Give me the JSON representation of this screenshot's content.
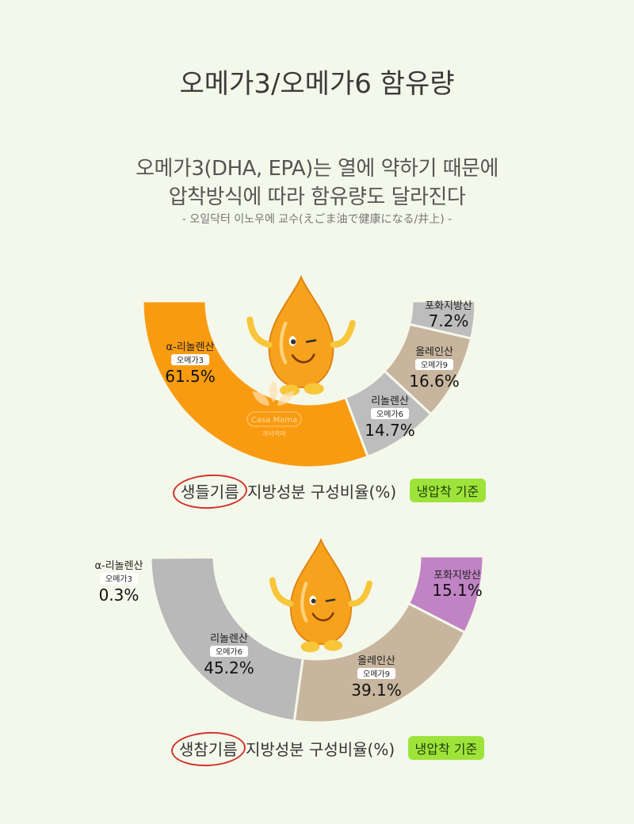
{
  "title": "오메가3/오메가6 함유량",
  "subtitle_line1": "오메가3(DHA, EPA)는 열에 약하기 때문에",
  "subtitle_line2": "압착방식에 따라 함유량도 달라진다",
  "credit": "- 오일닥터 이노우에 교수(えごま油で健康になる/井上) -",
  "watermark": {
    "line1": "Casa Mama",
    "line2": "까사마마"
  },
  "chart_data": [
    {
      "type": "pie",
      "oil": "생들기름",
      "caption_rest": "지방성분 구성비율(%)",
      "badge": "냉압착 기준",
      "segments": [
        {
          "name": "α-리놀렌산",
          "tag": "오메가3",
          "value": 61.5,
          "display": "61.5%",
          "color": "#f99b10"
        },
        {
          "name": "리놀렌산",
          "tag": "오메가6",
          "value": 14.7,
          "display": "14.7%",
          "color": "#bdbdbd"
        },
        {
          "name": "올레인산",
          "tag": "오메가9",
          "value": 16.6,
          "display": "16.6%",
          "color": "#c8b59e"
        },
        {
          "name": "포화지방산",
          "tag": "",
          "value": 7.2,
          "display": "7.2%",
          "color": "#bdbdbd"
        }
      ]
    },
    {
      "type": "pie",
      "oil": "생참기름",
      "caption_rest": "지방성분 구성비율(%)",
      "badge": "냉압착 기준",
      "segments": [
        {
          "name": "α-리놀렌산",
          "tag": "오메가3",
          "value": 0.3,
          "display": "0.3%",
          "color": "#f99b10"
        },
        {
          "name": "리놀렌산",
          "tag": "오메가6",
          "value": 45.2,
          "display": "45.2%",
          "color": "#b9b9b9"
        },
        {
          "name": "올레인산",
          "tag": "오메가9",
          "value": 39.1,
          "display": "39.1%",
          "color": "#c8b59e"
        },
        {
          "name": "포화지방산",
          "tag": "",
          "value": 15.1,
          "display": "15.1%",
          "color": "#c084c4"
        }
      ]
    }
  ]
}
